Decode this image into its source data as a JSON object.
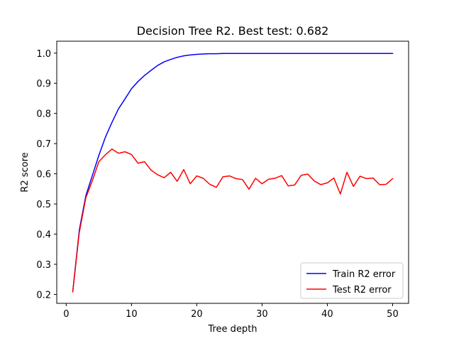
{
  "chart_data": {
    "type": "line",
    "title": "Decision Tree R2. Best test: 0.682",
    "xlabel": "Tree depth",
    "ylabel": "R2 score",
    "xlim": [
      -1.45,
      52.45
    ],
    "ylim": [
      0.1705,
      1.0395
    ],
    "xticks": [
      0,
      10,
      20,
      30,
      40,
      50
    ],
    "yticks": [
      0.2,
      0.3,
      0.4,
      0.5,
      0.6,
      0.7,
      0.8,
      0.9,
      1.0
    ],
    "ytick_labels": [
      "0.2",
      "0.3",
      "0.4",
      "0.5",
      "0.6",
      "0.7",
      "0.8",
      "0.9",
      "1.0"
    ],
    "grid": false,
    "legend_position": "bottom-right",
    "x": [
      1,
      2,
      3,
      4,
      5,
      6,
      7,
      8,
      9,
      10,
      11,
      12,
      13,
      14,
      15,
      16,
      17,
      18,
      19,
      20,
      21,
      22,
      23,
      24,
      25,
      26,
      27,
      28,
      29,
      30,
      31,
      32,
      33,
      34,
      35,
      36,
      37,
      38,
      39,
      40,
      41,
      42,
      43,
      44,
      45,
      46,
      47,
      48,
      49,
      50
    ],
    "series": [
      {
        "name": "Train R2 error",
        "color": "#0000ff",
        "values": [
          0.209,
          0.413,
          0.527,
          0.594,
          0.661,
          0.721,
          0.77,
          0.815,
          0.848,
          0.882,
          0.906,
          0.926,
          0.943,
          0.959,
          0.971,
          0.979,
          0.986,
          0.991,
          0.994,
          0.996,
          0.997,
          0.998,
          0.998,
          0.999,
          0.999,
          0.999,
          0.999,
          0.999,
          0.999,
          0.999,
          0.999,
          0.999,
          0.999,
          0.999,
          0.999,
          0.999,
          0.999,
          0.999,
          0.999,
          0.999,
          0.999,
          0.999,
          0.999,
          0.999,
          0.999,
          0.999,
          0.999,
          0.999,
          0.999,
          0.999
        ]
      },
      {
        "name": "Test R2 error",
        "color": "#ff0000",
        "values": [
          0.209,
          0.405,
          0.52,
          0.577,
          0.64,
          0.663,
          0.682,
          0.668,
          0.673,
          0.664,
          0.635,
          0.64,
          0.612,
          0.597,
          0.587,
          0.605,
          0.575,
          0.614,
          0.567,
          0.593,
          0.585,
          0.565,
          0.555,
          0.59,
          0.593,
          0.584,
          0.581,
          0.549,
          0.585,
          0.567,
          0.582,
          0.585,
          0.594,
          0.56,
          0.563,
          0.595,
          0.599,
          0.576,
          0.564,
          0.57,
          0.586,
          0.533,
          0.605,
          0.558,
          0.592,
          0.584,
          0.586,
          0.564,
          0.565,
          0.584
        ]
      }
    ]
  }
}
